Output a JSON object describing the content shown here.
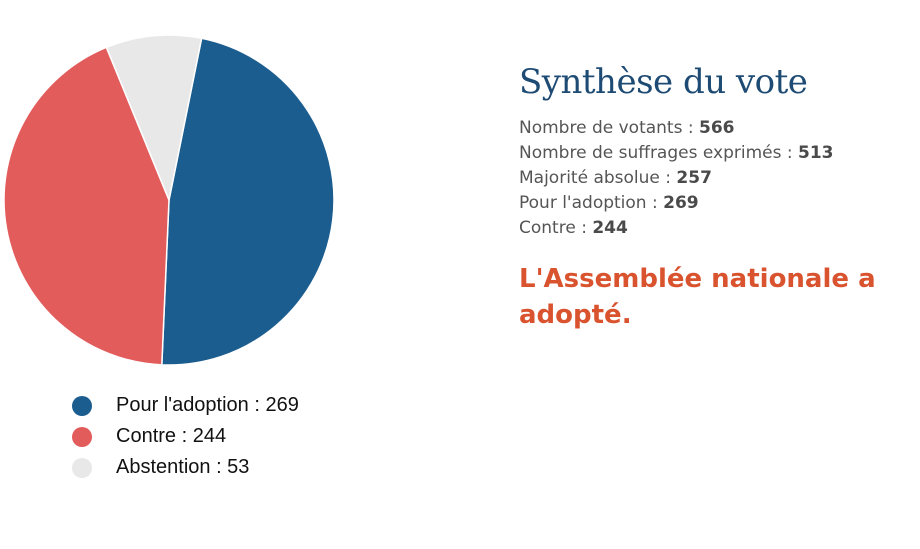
{
  "chart_data": {
    "type": "pie",
    "slices": [
      {
        "label": "Pour l'adoption",
        "value": 269,
        "color": "#1c5d8f"
      },
      {
        "label": "Contre",
        "value": 244,
        "color": "#e35c5c"
      },
      {
        "label": "Abstention",
        "value": 53,
        "color": "#e8e8e8"
      }
    ]
  },
  "legend": {
    "items": [
      {
        "text": "Pour l'adoption : 269",
        "color": "#1c5d8f"
      },
      {
        "text": "Contre : 244",
        "color": "#e35c5c"
      },
      {
        "text": "Abstention : 53",
        "color": "#e8e8e8"
      }
    ]
  },
  "summary": {
    "title": "Synthèse du vote",
    "stats": [
      {
        "label": "Nombre de votants : ",
        "value": "566"
      },
      {
        "label": "Nombre de suffrages exprimés : ",
        "value": "513"
      },
      {
        "label": "Majorité absolue : ",
        "value": "257"
      },
      {
        "label": "Pour l'adoption : ",
        "value": "269"
      },
      {
        "label": "Contre : ",
        "value": "244"
      }
    ],
    "result_line1": "L'Assemblée nationale a",
    "result_line2": "adopté."
  },
  "colors": {
    "title": "#1e4b73",
    "result": "#d9532f"
  }
}
